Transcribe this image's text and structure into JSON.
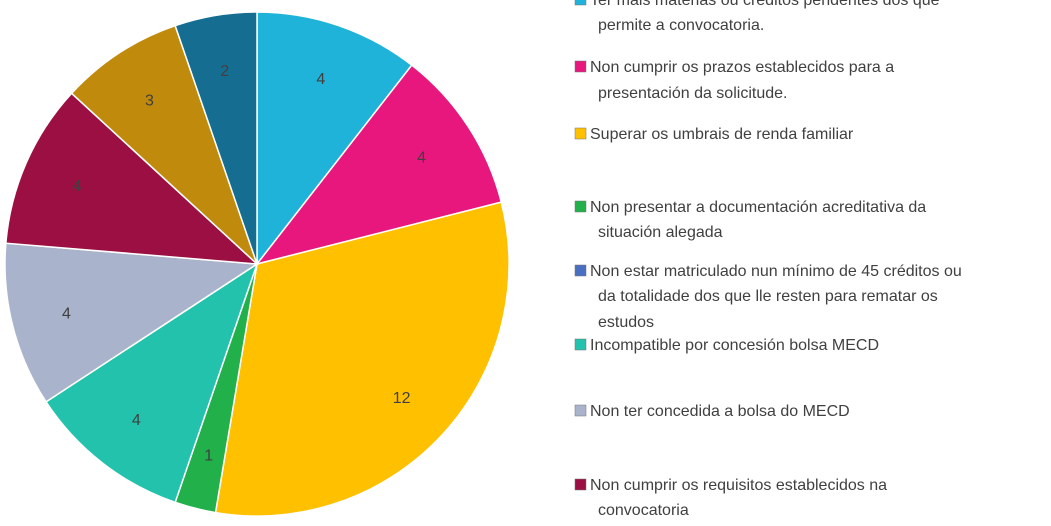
{
  "chart_data": {
    "type": "pie",
    "categories": [
      "Ter máis materias ou créditos pendentes dos que permite a convocatoria.",
      "Non cumprir os prazos establecidos para a presentación da solicitude.",
      "Superar os umbrais de renda familiar",
      "Non presentar a documentación acreditativa da situación alegada",
      "Non estar matriculado nun mínimo de 45 créditos ou da totalidade dos que lle resten para rematar os estudos",
      "Incompatible por concesión bolsa MECD",
      "Non ter concedida a bolsa do MECD",
      "Non cumprir os requisitos establecidos na convocatoria",
      null,
      null
    ],
    "values": [
      4,
      4,
      12,
      1,
      0,
      4,
      4,
      4,
      3,
      2
    ],
    "colors": [
      "#1fb3d9",
      "#e8177d",
      "#ffc000",
      "#22b04b",
      "#4a6fc0",
      "#22c2ad",
      "#a9b3cb",
      "#9b0f42",
      "#c08a0c",
      "#156e91"
    ]
  }
}
